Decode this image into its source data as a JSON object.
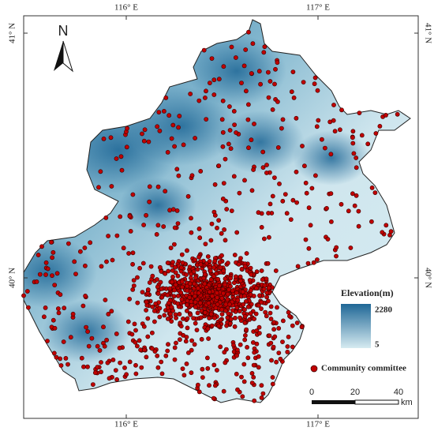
{
  "map": {
    "x_ticks": [
      "116° E",
      "117° E"
    ],
    "y_ticks": [
      "41° N",
      "40° N"
    ],
    "north": "N",
    "legend": {
      "title": "Elevation(m)",
      "max": "2280",
      "min": "5",
      "points": "Community committee"
    },
    "scale_bar": {
      "labels": [
        "0",
        "20",
        "40"
      ],
      "unit": "km"
    }
  }
}
